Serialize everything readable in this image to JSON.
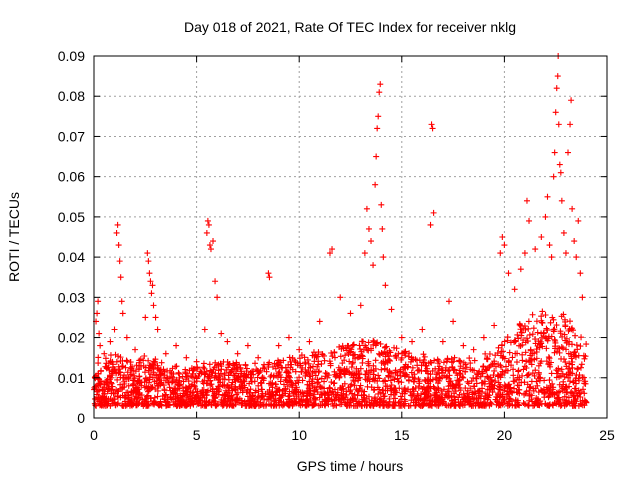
{
  "chart_data": {
    "type": "scatter",
    "title": "Day 018 of 2021, Rate Of TEC Index for receiver nklg",
    "xlabel": "GPS time / hours",
    "ylabel": "ROTI / TECUs",
    "xlim": [
      0,
      25
    ],
    "ylim": [
      0,
      0.09
    ],
    "x_ticks": [
      0,
      5,
      10,
      15,
      20,
      25
    ],
    "x_tick_labels": [
      "0",
      "5",
      "10",
      "15",
      "20",
      "25"
    ],
    "y_ticks": [
      0,
      0.01,
      0.02,
      0.03,
      0.04,
      0.05,
      0.06,
      0.07,
      0.08,
      0.09
    ],
    "y_tick_labels": [
      "0",
      "0.01",
      "0.02",
      "0.03",
      "0.04",
      "0.05",
      "0.06",
      "0.07",
      "0.08",
      "0.09"
    ],
    "grid": true,
    "marker": "plus",
    "color": "#ff0000",
    "series": [
      {
        "values": [
          [
            0.1,
            0.024
          ],
          [
            0.15,
            0.026
          ],
          [
            0.2,
            0.029
          ],
          [
            0.25,
            0.021
          ],
          [
            0.3,
            0.018
          ],
          [
            0.5,
            0.016
          ],
          [
            0.8,
            0.019
          ],
          [
            1.0,
            0.022
          ],
          [
            1.1,
            0.046
          ],
          [
            1.15,
            0.048
          ],
          [
            1.2,
            0.043
          ],
          [
            1.25,
            0.039
          ],
          [
            1.3,
            0.035
          ],
          [
            1.35,
            0.029
          ],
          [
            1.4,
            0.026
          ],
          [
            1.6,
            0.02
          ],
          [
            2.0,
            0.017
          ],
          [
            2.5,
            0.025
          ],
          [
            2.6,
            0.041
          ],
          [
            2.65,
            0.039
          ],
          [
            2.7,
            0.036
          ],
          [
            2.75,
            0.034
          ],
          [
            2.8,
            0.031
          ],
          [
            2.85,
            0.033
          ],
          [
            2.9,
            0.028
          ],
          [
            3.0,
            0.025
          ],
          [
            3.1,
            0.022
          ],
          [
            3.5,
            0.016
          ],
          [
            4.0,
            0.018
          ],
          [
            4.5,
            0.015
          ],
          [
            5.0,
            0.014
          ],
          [
            5.4,
            0.022
          ],
          [
            5.5,
            0.046
          ],
          [
            5.55,
            0.049
          ],
          [
            5.6,
            0.048
          ],
          [
            5.65,
            0.043
          ],
          [
            5.7,
            0.042
          ],
          [
            5.8,
            0.044
          ],
          [
            5.9,
            0.034
          ],
          [
            6.0,
            0.03
          ],
          [
            6.2,
            0.021
          ],
          [
            6.5,
            0.019
          ],
          [
            7.0,
            0.016
          ],
          [
            7.5,
            0.018
          ],
          [
            8.0,
            0.015
          ],
          [
            8.5,
            0.036
          ],
          [
            8.55,
            0.035
          ],
          [
            9.0,
            0.018
          ],
          [
            9.5,
            0.02
          ],
          [
            10.0,
            0.017
          ],
          [
            10.5,
            0.019
          ],
          [
            11.0,
            0.024
          ],
          [
            11.5,
            0.041
          ],
          [
            11.6,
            0.042
          ],
          [
            12.0,
            0.03
          ],
          [
            12.5,
            0.026
          ],
          [
            13.0,
            0.028
          ],
          [
            13.2,
            0.041
          ],
          [
            13.3,
            0.052
          ],
          [
            13.4,
            0.047
          ],
          [
            13.5,
            0.044
          ],
          [
            13.6,
            0.038
          ],
          [
            13.7,
            0.058
          ],
          [
            13.75,
            0.065
          ],
          [
            13.8,
            0.072
          ],
          [
            13.85,
            0.075
          ],
          [
            13.9,
            0.081
          ],
          [
            13.95,
            0.083
          ],
          [
            14.0,
            0.053
          ],
          [
            14.05,
            0.047
          ],
          [
            14.1,
            0.04
          ],
          [
            14.2,
            0.033
          ],
          [
            14.5,
            0.027
          ],
          [
            15.0,
            0.02
          ],
          [
            15.5,
            0.019
          ],
          [
            16.0,
            0.022
          ],
          [
            16.4,
            0.048
          ],
          [
            16.45,
            0.073
          ],
          [
            16.5,
            0.072
          ],
          [
            16.55,
            0.051
          ],
          [
            17.0,
            0.019
          ],
          [
            17.3,
            0.029
          ],
          [
            17.5,
            0.024
          ],
          [
            18.0,
            0.018
          ],
          [
            18.5,
            0.017
          ],
          [
            19.0,
            0.02
          ],
          [
            19.5,
            0.023
          ],
          [
            19.8,
            0.041
          ],
          [
            19.9,
            0.045
          ],
          [
            20.0,
            0.043
          ],
          [
            20.2,
            0.036
          ],
          [
            20.5,
            0.032
          ],
          [
            20.8,
            0.037
          ],
          [
            21.0,
            0.041
          ],
          [
            21.1,
            0.054
          ],
          [
            21.2,
            0.049
          ],
          [
            21.5,
            0.042
          ],
          [
            21.8,
            0.045
          ],
          [
            22.0,
            0.05
          ],
          [
            22.1,
            0.055
          ],
          [
            22.2,
            0.043
          ],
          [
            22.3,
            0.04
          ],
          [
            22.4,
            0.06
          ],
          [
            22.45,
            0.066
          ],
          [
            22.5,
            0.076
          ],
          [
            22.55,
            0.082
          ],
          [
            22.6,
            0.085
          ],
          [
            22.62,
            0.09
          ],
          [
            22.65,
            0.073
          ],
          [
            22.7,
            0.063
          ],
          [
            22.75,
            0.061
          ],
          [
            22.8,
            0.054
          ],
          [
            22.9,
            0.046
          ],
          [
            23.0,
            0.041
          ],
          [
            23.1,
            0.066
          ],
          [
            23.2,
            0.073
          ],
          [
            23.25,
            0.079
          ],
          [
            23.3,
            0.052
          ],
          [
            23.4,
            0.044
          ],
          [
            23.5,
            0.04
          ],
          [
            23.6,
            0.049
          ],
          [
            23.7,
            0.036
          ],
          [
            23.8,
            0.03
          ]
        ]
      }
    ],
    "dense_band": [
      [
        0.0,
        0.003,
        0.017
      ],
      [
        0.5,
        0.003,
        0.015
      ],
      [
        1.0,
        0.003,
        0.016
      ],
      [
        1.5,
        0.003,
        0.015
      ],
      [
        2.0,
        0.003,
        0.014
      ],
      [
        2.5,
        0.003,
        0.016
      ],
      [
        3.0,
        0.003,
        0.015
      ],
      [
        3.5,
        0.003,
        0.013
      ],
      [
        4.0,
        0.003,
        0.013
      ],
      [
        4.5,
        0.003,
        0.012
      ],
      [
        5.0,
        0.003,
        0.013
      ],
      [
        5.5,
        0.003,
        0.014
      ],
      [
        6.0,
        0.003,
        0.014
      ],
      [
        6.5,
        0.003,
        0.014
      ],
      [
        7.0,
        0.003,
        0.014
      ],
      [
        7.5,
        0.003,
        0.014
      ],
      [
        8.0,
        0.003,
        0.014
      ],
      [
        8.5,
        0.003,
        0.014
      ],
      [
        9.0,
        0.003,
        0.015
      ],
      [
        9.5,
        0.003,
        0.015
      ],
      [
        10.0,
        0.003,
        0.016
      ],
      [
        10.5,
        0.003,
        0.016
      ],
      [
        11.0,
        0.003,
        0.017
      ],
      [
        11.5,
        0.003,
        0.017
      ],
      [
        12.0,
        0.003,
        0.018
      ],
      [
        12.5,
        0.003,
        0.018
      ],
      [
        13.0,
        0.003,
        0.019
      ],
      [
        13.5,
        0.003,
        0.02
      ],
      [
        14.0,
        0.003,
        0.019
      ],
      [
        14.5,
        0.003,
        0.018
      ],
      [
        15.0,
        0.003,
        0.017
      ],
      [
        15.5,
        0.003,
        0.016
      ],
      [
        16.0,
        0.003,
        0.016
      ],
      [
        16.5,
        0.003,
        0.015
      ],
      [
        17.0,
        0.003,
        0.015
      ],
      [
        17.5,
        0.003,
        0.015
      ],
      [
        18.0,
        0.003,
        0.015
      ],
      [
        18.5,
        0.003,
        0.015
      ],
      [
        19.0,
        0.003,
        0.016
      ],
      [
        19.5,
        0.003,
        0.016
      ],
      [
        20.0,
        0.003,
        0.02
      ],
      [
        20.5,
        0.003,
        0.022
      ],
      [
        21.0,
        0.003,
        0.025
      ],
      [
        21.5,
        0.003,
        0.026
      ],
      [
        22.0,
        0.003,
        0.027
      ],
      [
        22.5,
        0.003,
        0.027
      ],
      [
        23.0,
        0.003,
        0.026
      ],
      [
        23.5,
        0.003,
        0.022
      ],
      [
        24.0,
        0.003,
        0.02
      ]
    ]
  }
}
